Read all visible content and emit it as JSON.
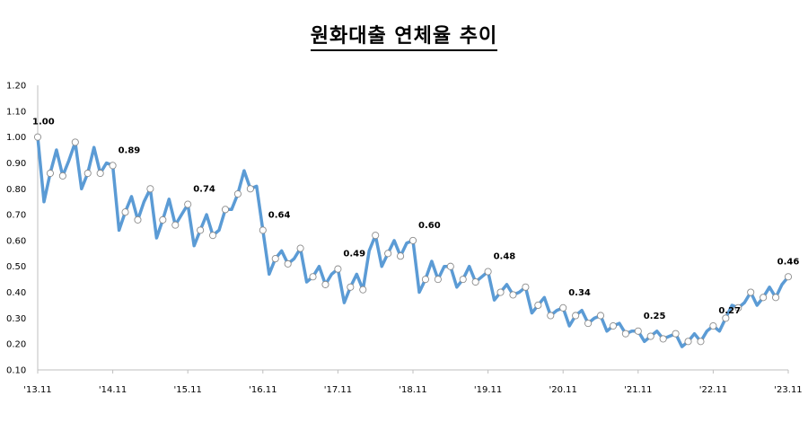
{
  "chart_data": {
    "type": "line",
    "title": "원화대출 연체율 추이",
    "xlabel": "",
    "ylabel": "",
    "ylim": [
      0.1,
      1.2
    ],
    "yticks": [
      "0.10",
      "0.20",
      "0.30",
      "0.40",
      "0.50",
      "0.60",
      "0.70",
      "0.80",
      "0.90",
      "1.00",
      "1.10",
      "1.20"
    ],
    "xticks": [
      "'13.11",
      "'14.11",
      "'15.11",
      "'16.11",
      "'17.11",
      "'18.11",
      "'19.11",
      "'20.11",
      "'21.11",
      "'22.11",
      "'23.11"
    ],
    "grid": false,
    "legend": "none",
    "line_color": "#5b9bd5",
    "series": [
      {
        "values": [
          1.0,
          0.75,
          0.86,
          0.95,
          0.85,
          0.91,
          0.98,
          0.8,
          0.86,
          0.96,
          0.86,
          0.9,
          0.89,
          0.64,
          0.71,
          0.77,
          0.68,
          0.75,
          0.8,
          0.61,
          0.68,
          0.76,
          0.66,
          0.7,
          0.74,
          0.58,
          0.64,
          0.7,
          0.62,
          0.64,
          0.72,
          0.72,
          0.78,
          0.87,
          0.8,
          0.81,
          0.64,
          0.47,
          0.53,
          0.56,
          0.51,
          0.53,
          0.57,
          0.44,
          0.46,
          0.5,
          0.43,
          0.47,
          0.49,
          0.36,
          0.42,
          0.47,
          0.41,
          0.56,
          0.62,
          0.5,
          0.55,
          0.6,
          0.54,
          0.59,
          0.6,
          0.4,
          0.45,
          0.52,
          0.45,
          0.5,
          0.5,
          0.42,
          0.45,
          0.5,
          0.44,
          0.46,
          0.48,
          0.37,
          0.4,
          0.43,
          0.39,
          0.4,
          0.42,
          0.32,
          0.35,
          0.38,
          0.31,
          0.33,
          0.34,
          0.27,
          0.31,
          0.33,
          0.28,
          0.3,
          0.31,
          0.25,
          0.27,
          0.28,
          0.24,
          0.25,
          0.25,
          0.21,
          0.23,
          0.25,
          0.22,
          0.23,
          0.24,
          0.19,
          0.21,
          0.24,
          0.21,
          0.25,
          0.27,
          0.25,
          0.3,
          0.35,
          0.34,
          0.36,
          0.4,
          0.35,
          0.38,
          0.42,
          0.38,
          0.43,
          0.46
        ]
      }
    ],
    "annotations": [
      {
        "index": 0,
        "text": "1.00"
      },
      {
        "index": 12,
        "text": "0.89"
      },
      {
        "index": 24,
        "text": "0.74"
      },
      {
        "index": 36,
        "text": "0.64"
      },
      {
        "index": 48,
        "text": "0.49"
      },
      {
        "index": 60,
        "text": "0.60"
      },
      {
        "index": 72,
        "text": "0.48"
      },
      {
        "index": 84,
        "text": "0.34"
      },
      {
        "index": 96,
        "text": "0.25"
      },
      {
        "index": 108,
        "text": "0.27"
      },
      {
        "index": 120,
        "text": "0.46"
      }
    ]
  }
}
